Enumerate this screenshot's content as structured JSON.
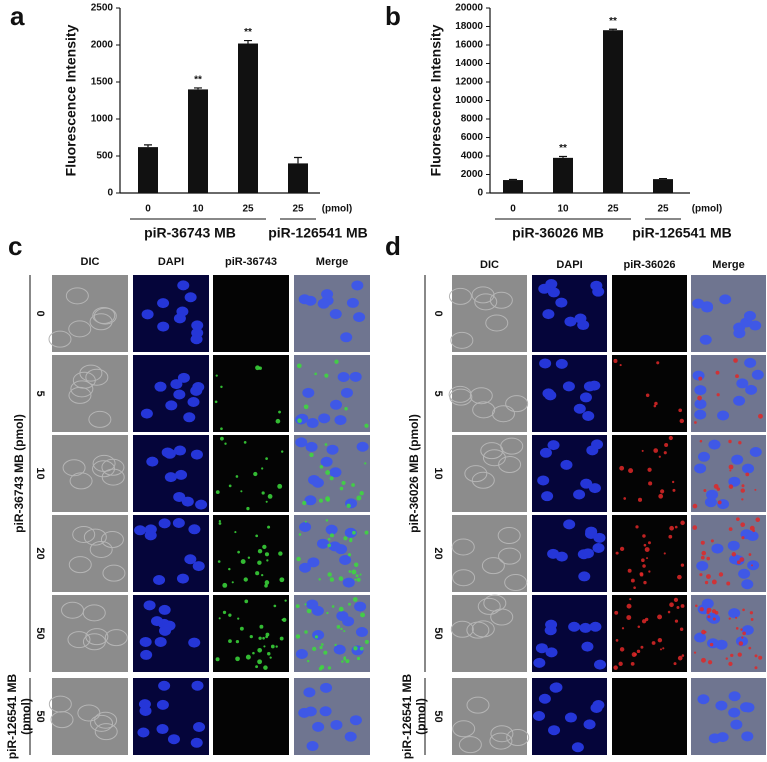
{
  "chart_data": [
    {
      "type": "bar",
      "panel_label": "a",
      "y_label": "Fluorescence Intensity",
      "categories": [
        "0",
        "10",
        "25",
        "25"
      ],
      "values": [
        620,
        1400,
        2020,
        400
      ],
      "errors": [
        30,
        20,
        40,
        80
      ],
      "significance": [
        null,
        "**",
        "**",
        null
      ],
      "unit_label": "(pmol)",
      "group_labels": [
        "piR-36743 MB",
        "piR-126541 MB"
      ],
      "color": "#111111",
      "ylim": [
        0,
        2500
      ],
      "yticks": [
        0,
        500,
        1000,
        1500,
        2000,
        2500
      ]
    },
    {
      "type": "bar",
      "panel_label": "b",
      "y_label": "Fluorescence Intensity",
      "categories": [
        "0",
        "10",
        "25",
        "25"
      ],
      "values": [
        1400,
        3800,
        17600,
        1500
      ],
      "errors": [
        60,
        150,
        100,
        60
      ],
      "significance": [
        null,
        "**",
        "**",
        null
      ],
      "unit_label": "(pmol)",
      "group_labels": [
        "piR-36026 MB",
        "piR-126541 MB"
      ],
      "color": "#111111",
      "ylim": [
        0,
        20000
      ],
      "yticks": [
        0,
        2000,
        4000,
        6000,
        8000,
        10000,
        12000,
        14000,
        16000,
        18000,
        20000
      ]
    }
  ],
  "panels": [
    {
      "label": "c",
      "columns": [
        "DIC",
        "DAPI",
        "piR-36743",
        "Merge"
      ],
      "row_groups": [
        {
          "label": [
            "piR-36743 MB (pmol)"
          ],
          "rows": [
            "0",
            "5",
            "10",
            "20",
            "50"
          ]
        },
        {
          "label": [
            "piR-126541 MB",
            "(pmol)"
          ],
          "rows": [
            "50"
          ]
        }
      ]
    },
    {
      "label": "d",
      "columns": [
        "DIC",
        "DAPI",
        "piR-36026",
        "Merge"
      ],
      "row_groups": [
        {
          "label": [
            "piR-36026 MB (pmol)"
          ],
          "rows": [
            "0",
            "5",
            "10",
            "20",
            "50"
          ]
        },
        {
          "label": [
            "piR-126541 MB",
            "(pmol)"
          ],
          "rows": [
            "50"
          ]
        }
      ]
    }
  ]
}
